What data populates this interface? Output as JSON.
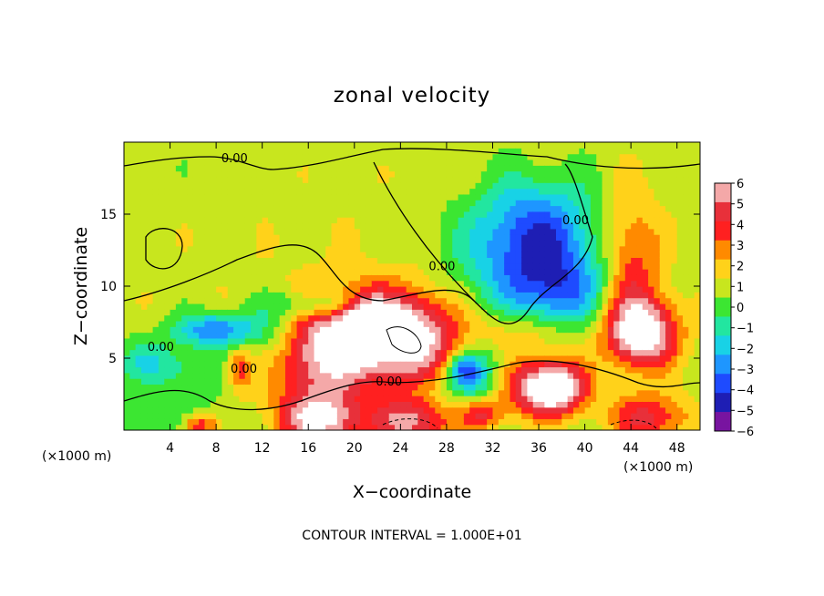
{
  "chart_data": {
    "type": "heatmap",
    "title": "zonal velocity",
    "xlabel": "X−coordinate",
    "ylabel": "Z−coordinate",
    "x_unit_label": "(×1000 m)",
    "x_unit_label_right": "(×1000 m)",
    "xlim": [
      0,
      50
    ],
    "ylim": [
      0,
      20
    ],
    "x_ticks": [
      4,
      8,
      12,
      16,
      20,
      24,
      28,
      32,
      36,
      40,
      44,
      48
    ],
    "y_ticks": [
      5,
      10,
      15
    ],
    "colorbar": {
      "levels": [
        6,
        5,
        4,
        3,
        2,
        1,
        0,
        -1,
        -2,
        -3,
        -4,
        -5,
        -6
      ],
      "level_labels": [
        "6",
        "5",
        "4",
        "3",
        "2",
        "1",
        "0",
        "−1",
        "−2",
        "−3",
        "−4",
        "−5",
        "−6"
      ],
      "colors": [
        "#f4a8a8",
        "#e8303a",
        "#ff2020",
        "#ff8a00",
        "#ffd21a",
        "#c8e61e",
        "#3ce632",
        "#22e6a0",
        "#18d2e6",
        "#1e96ff",
        "#1e4bff",
        "#1e1eb4",
        "#7814a0"
      ]
    },
    "contour_labels": [
      {
        "text": "0.00",
        "x": 9.6,
        "z": 18.6
      },
      {
        "text": "0.00",
        "x": 3.2,
        "z": 5.5
      },
      {
        "text": "0.00",
        "x": 10.4,
        "z": 4.0
      },
      {
        "text": "0.00",
        "x": 27.6,
        "z": 11.1
      },
      {
        "text": "0.00",
        "x": 39.2,
        "z": 14.3
      },
      {
        "text": "0.00",
        "x": 23.0,
        "z": 3.1
      }
    ],
    "contour_interval_text": "CONTOUR INTERVAL = 1.000E+01",
    "field_blobs": [
      {
        "x": 25,
        "z": 10,
        "rx": 40,
        "rz": 14,
        "v": 0.8
      },
      {
        "x": 35,
        "z": 12,
        "rx": 6,
        "rz": 4,
        "v": -4.5
      },
      {
        "x": 36,
        "z": 15,
        "rx": 5,
        "rz": 3,
        "v": -2.2
      },
      {
        "x": 38,
        "z": 9.5,
        "rx": 4,
        "rz": 3,
        "v": -3.0
      },
      {
        "x": 44,
        "z": 11.5,
        "rx": 2.5,
        "rz": 5,
        "v": 3.2
      },
      {
        "x": 16.5,
        "z": 5.8,
        "rx": 4.5,
        "rz": 3.5,
        "v": 8
      },
      {
        "x": 14,
        "z": 6.5,
        "rx": 3.5,
        "rz": 3,
        "v": -4.5
      },
      {
        "x": 17.5,
        "z": 8.7,
        "rx": 4,
        "rz": 1,
        "v": -3.2
      },
      {
        "x": 24,
        "z": 6.5,
        "rx": 4.5,
        "rz": 3,
        "v": 8
      },
      {
        "x": 21,
        "z": 8,
        "rx": 2,
        "rz": 1.5,
        "v": 4
      },
      {
        "x": 45,
        "z": 6.8,
        "rx": 3,
        "rz": 2.3,
        "v": 7
      },
      {
        "x": 37.5,
        "z": 3,
        "rx": 2.5,
        "rz": 1.8,
        "v": 8
      },
      {
        "x": 34,
        "z": 3,
        "rx": 3,
        "rz": 2,
        "v": 3.5
      },
      {
        "x": 31,
        "z": 1.2,
        "rx": 1.8,
        "rz": 1,
        "v": 3.5
      },
      {
        "x": 31,
        "z": 4,
        "rx": 2.5,
        "rz": 2,
        "v": -3.5
      },
      {
        "x": 17,
        "z": 0.7,
        "rx": 3.5,
        "rz": 1.8,
        "v": 6
      },
      {
        "x": 25,
        "z": 0.7,
        "rx": 3.5,
        "rz": 1.8,
        "v": 5
      },
      {
        "x": 45.5,
        "z": 0.9,
        "rx": 3.5,
        "rz": 1.6,
        "v": 4
      },
      {
        "x": 6.5,
        "z": 0.4,
        "rx": 1.5,
        "rz": 0.8,
        "v": 4
      },
      {
        "x": 8,
        "z": 7,
        "rx": 3.5,
        "rz": 1.2,
        "v": -4.5
      },
      {
        "x": 2,
        "z": 4.8,
        "rx": 3,
        "rz": 1.5,
        "v": -2.2
      },
      {
        "x": 6,
        "z": 4,
        "rx": 3,
        "rz": 1.5,
        "v": -1.5
      },
      {
        "x": 10,
        "z": 4.3,
        "rx": 1,
        "rz": 1.5,
        "v": 3
      },
      {
        "x": 35,
        "z": 6.8,
        "rx": 5,
        "rz": 1.5,
        "v": 1.8
      },
      {
        "x": 3,
        "z": 1,
        "rx": 6,
        "rz": 1.5,
        "v": -1.2
      },
      {
        "x": 28,
        "z": 2.5,
        "rx": 6,
        "rz": 1.5,
        "v": -1.0
      },
      {
        "x": 29.5,
        "z": 4.2,
        "rx": 1.2,
        "rz": 1,
        "v": -3.5
      }
    ]
  }
}
